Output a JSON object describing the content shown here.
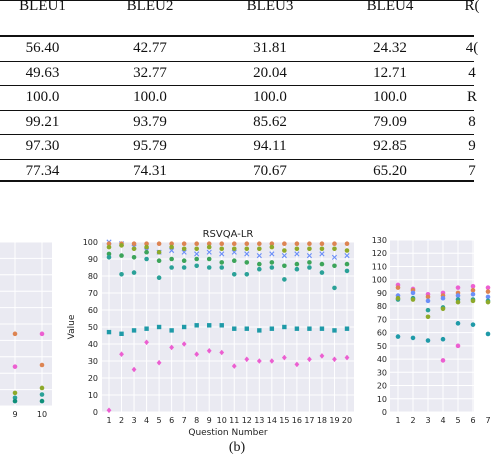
{
  "table": {
    "headers": [
      "BLEU1",
      "BLEU2",
      "BLEU3",
      "BLEU4",
      "R("
    ],
    "rows": [
      [
        "56.40",
        "42.77",
        "31.81",
        "24.32",
        "4("
      ],
      [
        "49.63",
        "32.77",
        "20.04",
        "12.71",
        "4"
      ],
      [
        "100.0",
        "100.0",
        "100.0",
        "100.0",
        "R"
      ],
      [
        "99.21",
        "93.79",
        "85.62",
        "79.09",
        "8"
      ],
      [
        "97.30",
        "95.79",
        "94.11",
        "92.85",
        "9"
      ],
      [
        "77.34",
        "74.31",
        "70.67",
        "65.20",
        "7"
      ]
    ]
  },
  "caption": "(b)",
  "chart_data": [
    {
      "type": "scatter",
      "title": "",
      "xlabel": "",
      "ylabel": "",
      "x_visible": [
        9,
        10
      ],
      "series": [
        {
          "color": "#dd8452",
          "values": [
            44,
            25
          ]
        },
        {
          "color": "#8da92a",
          "values": [
            8,
            11
          ]
        },
        {
          "color": "#2aa198",
          "values": [
            5,
            7
          ]
        },
        {
          "color": "#ec5fd1",
          "values": [
            24,
            44
          ]
        },
        {
          "color": "#0f8f7a",
          "values": [
            3,
            3
          ]
        }
      ]
    },
    {
      "type": "scatter",
      "title": "RSVQA-LR",
      "xlabel": "Question Number",
      "ylabel": "Value",
      "ylim": [
        0,
        100
      ],
      "yticks": [
        0,
        10,
        20,
        30,
        40,
        50,
        60,
        70,
        80,
        90,
        100
      ],
      "x": [
        1,
        2,
        3,
        4,
        5,
        6,
        7,
        8,
        9,
        10,
        11,
        12,
        13,
        14,
        15,
        16,
        17,
        18,
        19,
        20
      ],
      "series": [
        {
          "color": "#6c8ff8",
          "marker": "x",
          "values": [
            100,
            99,
            97,
            95,
            94,
            95,
            94,
            93,
            94,
            93,
            94,
            93,
            92,
            93,
            92,
            93,
            92,
            93,
            91,
            92
          ]
        },
        {
          "color": "#dd8452",
          "marker": "circle",
          "values": [
            99,
            99,
            99,
            99,
            99,
            99,
            99,
            99,
            99,
            99,
            99,
            99,
            99,
            99,
            99,
            99,
            99,
            99,
            99,
            99
          ]
        },
        {
          "color": "#8da92a",
          "marker": "circle",
          "values": [
            97,
            98,
            96,
            97,
            94,
            97,
            96,
            96,
            97,
            96,
            96,
            96,
            96,
            97,
            95,
            96,
            96,
            96,
            96,
            95
          ]
        },
        {
          "color": "#3da45a",
          "marker": "circle",
          "values": [
            93,
            92,
            91,
            94,
            89,
            90,
            89,
            90,
            90,
            88,
            89,
            88,
            87,
            88,
            86,
            87,
            88,
            87,
            86,
            87
          ]
        },
        {
          "color": "#2aa198",
          "marker": "circle",
          "values": [
            91,
            81,
            82,
            90,
            79,
            85,
            85,
            86,
            85,
            85,
            81,
            81,
            84,
            85,
            78,
            84,
            85,
            82,
            73,
            83
          ]
        },
        {
          "color": "#1f9aa8",
          "marker": "square",
          "values": [
            47,
            46,
            48,
            49,
            50,
            48,
            50,
            51,
            51,
            51,
            49,
            49,
            48,
            49,
            50,
            49,
            49,
            49,
            48,
            49
          ]
        },
        {
          "color": "#ec5fd1",
          "marker": "diamond",
          "values": [
            1,
            34,
            25,
            41,
            29,
            38,
            40,
            34,
            36,
            35,
            27,
            31,
            30,
            30,
            32,
            28,
            31,
            33,
            31,
            32
          ]
        }
      ]
    },
    {
      "type": "scatter",
      "title": "",
      "xlabel": "",
      "ylabel": "",
      "ylim": [
        0,
        130
      ],
      "yticks": [
        0,
        10,
        20,
        30,
        40,
        50,
        60,
        70,
        80,
        90,
        100,
        110,
        120,
        130
      ],
      "x": [
        1,
        2,
        3,
        4,
        5,
        6,
        7
      ],
      "series": [
        {
          "color": "#ec5fd1",
          "values": [
            96,
            93,
            89,
            90,
            94,
            95,
            94
          ]
        },
        {
          "color": "#dd8452",
          "values": [
            94,
            92,
            87,
            88,
            90,
            92,
            91
          ]
        },
        {
          "color": "#6c8ff8",
          "values": [
            88,
            90,
            84,
            86,
            88,
            89,
            87
          ]
        },
        {
          "color": "#2aa198",
          "values": [
            85,
            86,
            77,
            79,
            85,
            85,
            84
          ]
        },
        {
          "color": "#8da92a",
          "values": [
            86,
            85,
            72,
            78,
            83,
            84,
            83
          ]
        },
        {
          "color": "#1f9aa8",
          "values": [
            57,
            56,
            54,
            55,
            67,
            66,
            59
          ]
        },
        {
          "color": "#ec5fd1",
          "values": [
            null,
            null,
            null,
            39,
            50,
            null,
            null
          ]
        }
      ]
    }
  ]
}
